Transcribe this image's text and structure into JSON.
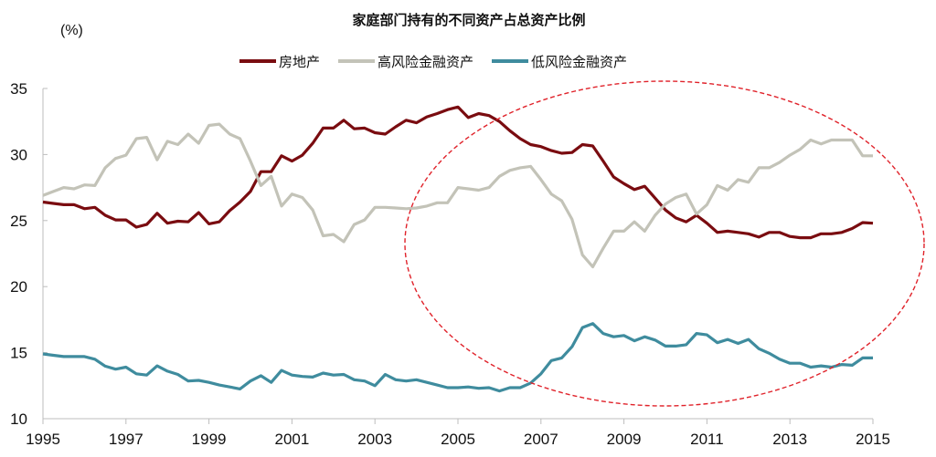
{
  "chart_data": {
    "type": "line",
    "title": "家庭部门持有的不同资产占总资产比例",
    "ylabel": "(%)",
    "xlabel": "",
    "xlim": [
      1995,
      2015
    ],
    "ylim": [
      10,
      35
    ],
    "x_ticks": [
      "1995",
      "1997",
      "1999",
      "2001",
      "2003",
      "2005",
      "2007",
      "2009",
      "2011",
      "2013",
      "2015"
    ],
    "y_ticks": [
      "35",
      "30",
      "25",
      "20",
      "15",
      "10"
    ],
    "grid": false,
    "legend_position": "top-center",
    "x_frequency": "quarterly",
    "x_start": 1995,
    "annotation": "red dashed ellipse highlighting 2005–2015",
    "annotation_color": "#e0222a",
    "series": [
      {
        "name": "房地产",
        "color": "#7a0c10",
        "values": [
          26.4,
          26.3,
          26.2,
          26.2,
          25.9,
          26.0,
          25.4,
          25.05,
          25.05,
          24.5,
          24.7,
          25.55,
          24.8,
          24.95,
          24.9,
          25.6,
          24.75,
          24.9,
          25.75,
          26.4,
          27.2,
          28.7,
          28.7,
          29.9,
          29.5,
          29.95,
          30.85,
          32.0,
          32.0,
          32.6,
          31.95,
          32.0,
          31.65,
          31.55,
          32.1,
          32.6,
          32.4,
          32.85,
          33.1,
          33.4,
          33.6,
          32.8,
          33.1,
          32.95,
          32.5,
          31.8,
          31.2,
          30.75,
          30.6,
          30.3,
          30.1,
          30.15,
          30.75,
          30.65,
          29.5,
          28.3,
          27.8,
          27.35,
          27.6,
          26.7,
          25.8,
          25.2,
          24.9,
          25.4,
          24.8,
          24.1,
          24.2,
          24.1,
          24.0,
          23.75,
          24.1,
          24.1,
          23.8,
          23.7,
          23.7,
          24.0,
          24.0,
          24.1,
          24.4,
          24.85,
          24.8
        ]
      },
      {
        "name": "高风险金融资产",
        "color": "#c3c3b8",
        "values": [
          26.9,
          27.2,
          27.5,
          27.4,
          27.7,
          27.65,
          29.0,
          29.7,
          29.95,
          31.2,
          31.3,
          29.6,
          31.0,
          30.75,
          31.55,
          30.85,
          32.2,
          32.3,
          31.55,
          31.2,
          29.5,
          27.65,
          28.35,
          26.1,
          27.0,
          26.75,
          25.8,
          23.85,
          23.95,
          23.4,
          24.7,
          25.05,
          26.0,
          26.0,
          25.95,
          25.9,
          25.95,
          26.1,
          26.35,
          26.35,
          27.5,
          27.4,
          27.3,
          27.5,
          28.35,
          28.8,
          29.0,
          29.1,
          28.1,
          27.0,
          26.5,
          25.1,
          22.4,
          21.5,
          22.9,
          24.2,
          24.2,
          24.9,
          24.2,
          25.4,
          26.25,
          26.75,
          27.0,
          25.5,
          26.2,
          27.65,
          27.3,
          28.1,
          27.9,
          29.0,
          29.0,
          29.4,
          29.95,
          30.4,
          31.1,
          30.8,
          31.1,
          31.1,
          31.1,
          29.9,
          29.9
        ]
      },
      {
        "name": "低风险金融资产",
        "color": "#3f8c9e",
        "values": [
          14.9,
          14.8,
          14.7,
          14.7,
          14.7,
          14.5,
          13.98,
          13.75,
          13.9,
          13.4,
          13.3,
          14.0,
          13.6,
          13.35,
          12.85,
          12.9,
          12.75,
          12.55,
          12.4,
          12.25,
          12.85,
          13.25,
          12.75,
          13.65,
          13.3,
          13.2,
          13.15,
          13.45,
          13.3,
          13.35,
          12.95,
          12.85,
          12.5,
          13.35,
          12.95,
          12.85,
          12.95,
          12.75,
          12.55,
          12.35,
          12.35,
          12.4,
          12.3,
          12.35,
          12.1,
          12.35,
          12.35,
          12.7,
          13.4,
          14.4,
          14.6,
          15.45,
          16.9,
          17.2,
          16.45,
          16.2,
          16.3,
          15.9,
          16.2,
          15.95,
          15.5,
          15.5,
          15.6,
          16.45,
          16.35,
          15.75,
          16.0,
          15.7,
          16.0,
          15.3,
          14.95,
          14.5,
          14.2,
          14.2,
          13.9,
          14.0,
          13.9,
          14.1,
          14.05,
          14.6,
          14.6
        ]
      }
    ]
  }
}
